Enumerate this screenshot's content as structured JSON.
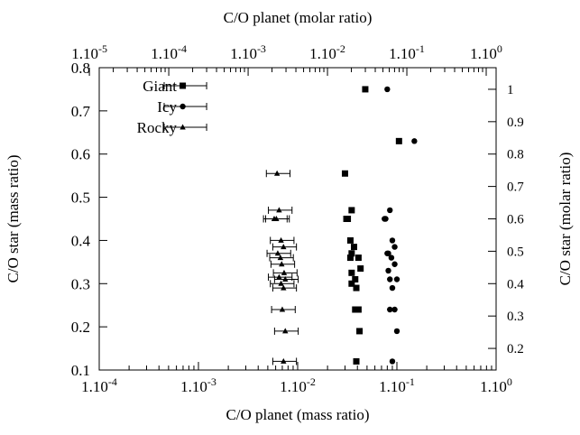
{
  "chart_data": {
    "type": "scatter",
    "xscale": "log",
    "x_axis": {
      "label": "C/O planet (mass ratio)",
      "range": [
        0.0001,
        1.0
      ],
      "ticks": [
        {
          "v": 0.0001,
          "base": "1.10",
          "exp": "-4"
        },
        {
          "v": 0.001,
          "base": "1.10",
          "exp": "-3"
        },
        {
          "v": 0.01,
          "base": "1.10",
          "exp": "-2"
        },
        {
          "v": 0.1,
          "base": "1.10",
          "exp": "-1"
        },
        {
          "v": 1.0,
          "base": "1.10",
          "exp": "0"
        }
      ]
    },
    "x2_axis": {
      "label": "C/O planet (molar ratio)",
      "range": [
        1.33e-05,
        1.333
      ],
      "ticks": [
        {
          "v": 1e-05,
          "base": "1.10",
          "exp": "-5"
        },
        {
          "v": 0.0001,
          "base": "1.10",
          "exp": "-4"
        },
        {
          "v": 0.001,
          "base": "1.10",
          "exp": "-3"
        },
        {
          "v": 0.01,
          "base": "1.10",
          "exp": "-2"
        },
        {
          "v": 0.1,
          "base": "1.10",
          "exp": "-1"
        },
        {
          "v": 1.0,
          "base": "1.10",
          "exp": "0"
        }
      ]
    },
    "y_axis": {
      "label": "C/O star (mass ratio)",
      "range": [
        0.1,
        0.8
      ],
      "ticks": [
        "0.1",
        "0.2",
        "0.3",
        "0.4",
        "0.5",
        "0.6",
        "0.7",
        "0.8"
      ]
    },
    "y2_axis": {
      "label": "C/O star (molar ratio)",
      "range": [
        0.1333,
        1.0667
      ],
      "ticks": [
        "0.2",
        "0.3",
        "0.4",
        "0.5",
        "0.6",
        "0.7",
        "0.8",
        "0.9",
        "1"
      ]
    },
    "legend": {
      "position": "top-left",
      "entries": [
        {
          "label": "Giant",
          "marker": "square",
          "x": 0.00015,
          "xerr_low": 8.75e-05,
          "xerr_high": 0.0003
        },
        {
          "label": "Icy",
          "marker": "circle",
          "x": 0.00015,
          "xerr_low": 8.75e-05,
          "xerr_high": 0.0003
        },
        {
          "label": "Rocky",
          "marker": "triangle",
          "x": 0.00015,
          "xerr_low": 8.75e-05,
          "xerr_high": 0.0003
        }
      ]
    },
    "series": [
      {
        "name": "Giant",
        "marker": "square",
        "points": [
          {
            "x": 0.048,
            "y": 0.75
          },
          {
            "x": 0.105,
            "y": 0.63
          },
          {
            "x": 0.03,
            "y": 0.555
          },
          {
            "x": 0.035,
            "y": 0.47
          },
          {
            "x": 0.031,
            "y": 0.45
          },
          {
            "x": 0.032,
            "y": 0.45
          },
          {
            "x": 0.034,
            "y": 0.4
          },
          {
            "x": 0.037,
            "y": 0.385
          },
          {
            "x": 0.035,
            "y": 0.37
          },
          {
            "x": 0.034,
            "y": 0.36
          },
          {
            "x": 0.041,
            "y": 0.36
          },
          {
            "x": 0.043,
            "y": 0.335
          },
          {
            "x": 0.035,
            "y": 0.325
          },
          {
            "x": 0.038,
            "y": 0.31
          },
          {
            "x": 0.035,
            "y": 0.3
          },
          {
            "x": 0.039,
            "y": 0.29
          },
          {
            "x": 0.038,
            "y": 0.24
          },
          {
            "x": 0.041,
            "y": 0.24
          },
          {
            "x": 0.042,
            "y": 0.19
          },
          {
            "x": 0.039,
            "y": 0.12
          }
        ]
      },
      {
        "name": "Icy",
        "marker": "circle",
        "points": [
          {
            "x": 0.08,
            "y": 0.75
          },
          {
            "x": 0.15,
            "y": 0.63
          },
          {
            "x": 0.085,
            "y": 0.47
          },
          {
            "x": 0.075,
            "y": 0.45
          },
          {
            "x": 0.077,
            "y": 0.45
          },
          {
            "x": 0.09,
            "y": 0.4
          },
          {
            "x": 0.095,
            "y": 0.385
          },
          {
            "x": 0.08,
            "y": 0.37
          },
          {
            "x": 0.082,
            "y": 0.37
          },
          {
            "x": 0.088,
            "y": 0.36
          },
          {
            "x": 0.095,
            "y": 0.345
          },
          {
            "x": 0.082,
            "y": 0.33
          },
          {
            "x": 0.1,
            "y": 0.31
          },
          {
            "x": 0.085,
            "y": 0.31
          },
          {
            "x": 0.09,
            "y": 0.29
          },
          {
            "x": 0.085,
            "y": 0.24
          },
          {
            "x": 0.095,
            "y": 0.24
          },
          {
            "x": 0.1,
            "y": 0.19
          },
          {
            "x": 0.09,
            "y": 0.12
          }
        ]
      },
      {
        "name": "Rocky",
        "marker": "triangle",
        "xerr_factor_low": 0.78,
        "xerr_factor_high": 1.35,
        "points": [
          {
            "x": 0.0062,
            "y": 0.555
          },
          {
            "x": 0.0065,
            "y": 0.47
          },
          {
            "x": 0.0061,
            "y": 0.45
          },
          {
            "x": 0.0058,
            "y": 0.45
          },
          {
            "x": 0.0068,
            "y": 0.4
          },
          {
            "x": 0.0072,
            "y": 0.385
          },
          {
            "x": 0.0063,
            "y": 0.37
          },
          {
            "x": 0.0067,
            "y": 0.36
          },
          {
            "x": 0.0069,
            "y": 0.345
          },
          {
            "x": 0.0073,
            "y": 0.325
          },
          {
            "x": 0.0065,
            "y": 0.315
          },
          {
            "x": 0.0075,
            "y": 0.31
          },
          {
            "x": 0.0068,
            "y": 0.3
          },
          {
            "x": 0.0072,
            "y": 0.29
          },
          {
            "x": 0.007,
            "y": 0.24
          },
          {
            "x": 0.0075,
            "y": 0.19
          },
          {
            "x": 0.0072,
            "y": 0.12
          }
        ]
      }
    ],
    "grid": false
  }
}
